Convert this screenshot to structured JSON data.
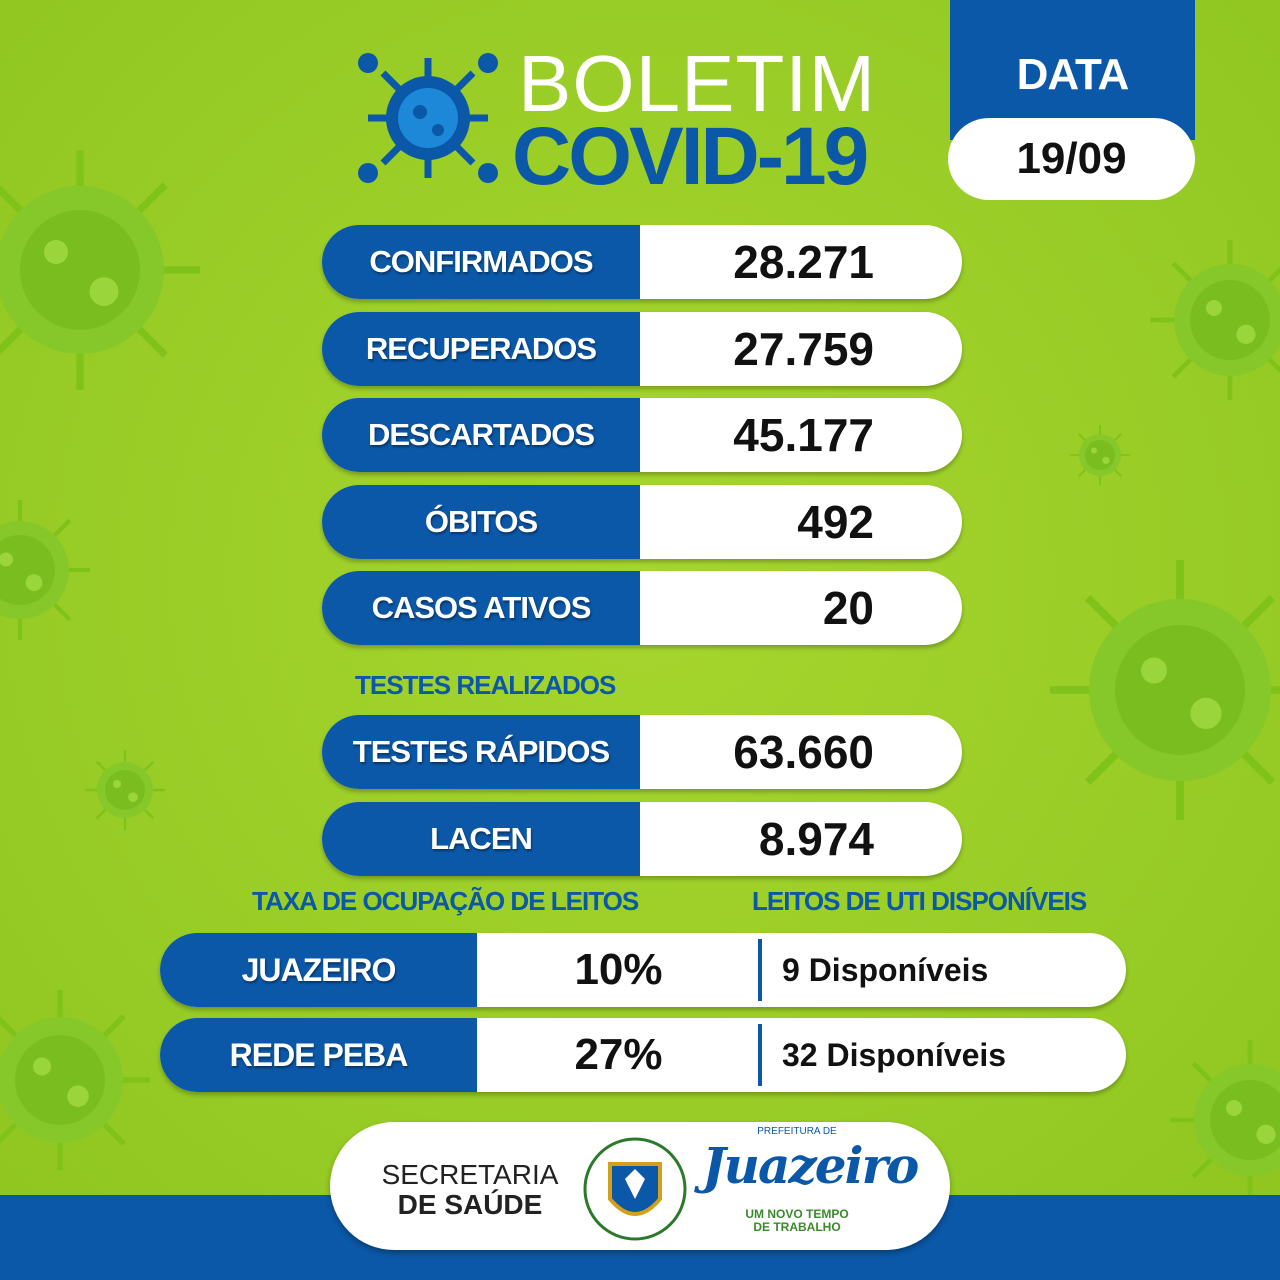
{
  "header": {
    "title": "BOLETIM",
    "subtitle": "COVID-19"
  },
  "date": {
    "label": "DATA",
    "value": "19/09"
  },
  "indicators": [
    {
      "label": "CONFIRMADOS",
      "value": "28.271"
    },
    {
      "label": "RECUPERADOS",
      "value": "27.759"
    },
    {
      "label": "DESCARTADOS",
      "value": "45.177"
    },
    {
      "label": "ÓBITOS",
      "value": "492"
    },
    {
      "label": "CASOS ATIVOS",
      "value": "20"
    }
  ],
  "tests": {
    "title": "TESTES REALIZADOS",
    "rows": [
      {
        "label": "TESTES RÁPIDOS",
        "value": "63.660"
      },
      {
        "label": "LACEN",
        "value": "8.974"
      }
    ]
  },
  "beds": {
    "occupancy_title": "TAXA DE OCUPAÇÃO DE LEITOS",
    "icu_title": "LEITOS DE UTI DISPONÍVEIS",
    "rows": [
      {
        "name": "JUAZEIRO",
        "occupancy": "10%",
        "available": "9 Disponíveis"
      },
      {
        "name": "REDE PEBA",
        "occupancy": "27%",
        "available": "32 Disponíveis"
      }
    ]
  },
  "footer": {
    "department_line1": "SECRETARIA",
    "department_line2": "DE SAÚDE",
    "prefecture": "PREFEITURA DE",
    "city": "Juazeiro",
    "slogan_line1": "UM NOVO TEMPO",
    "slogan_line2": "DE TRABALHO"
  }
}
